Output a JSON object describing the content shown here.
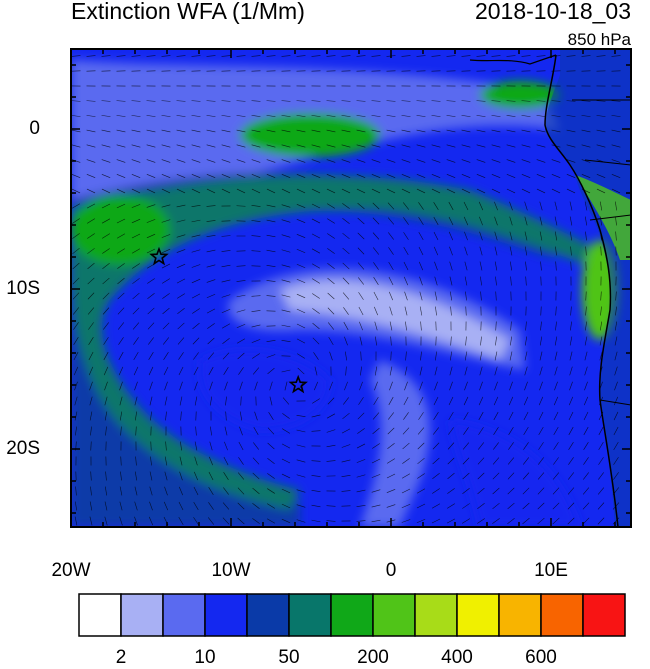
{
  "title": "Extinction WFA (1/Mm)",
  "datetime": "2018-10-18_03",
  "level": "850 hPa",
  "lat_labels": [
    "0",
    "10S",
    "20S"
  ],
  "lon_labels": [
    "20W",
    "10W",
    "0",
    "10E"
  ],
  "colorbar": {
    "colors": [
      "#ffffff",
      "#a8b0f4",
      "#5a6af0",
      "#1428f0",
      "#0a3aa8",
      "#08766a",
      "#10a818",
      "#50c418",
      "#a8dc18",
      "#f0f000",
      "#f8b400",
      "#f86400",
      "#f81414"
    ],
    "labels": [
      "2",
      "10",
      "50",
      "200",
      "400",
      "600"
    ]
  },
  "markers": [
    {
      "name": "star",
      "lon": -14.5,
      "lat": -8
    },
    {
      "name": "star",
      "lon": -5.8,
      "lat": -16
    }
  ]
}
